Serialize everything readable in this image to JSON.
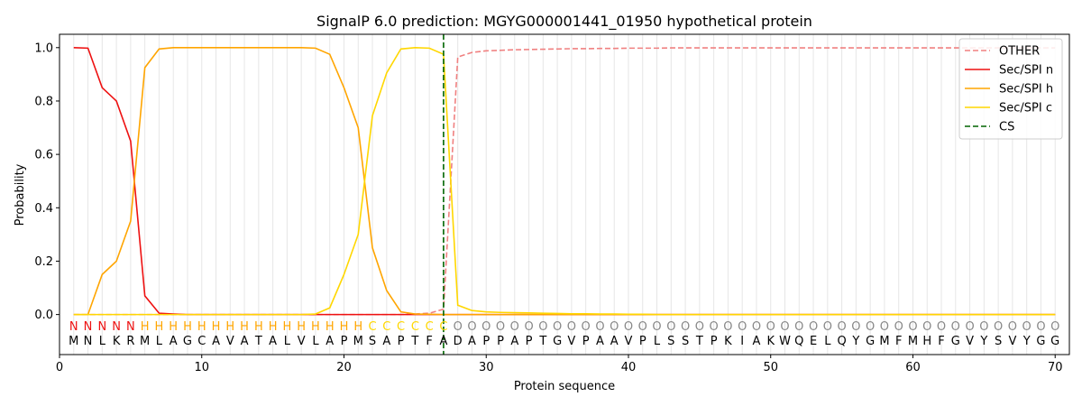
{
  "chart_data": {
    "type": "line",
    "title": "SignalP 6.0 prediction: MGYG000001441_01950 hypothetical protein",
    "xlabel": "Protein sequence",
    "ylabel": "Probability",
    "xlim": [
      0,
      71
    ],
    "ylim": [
      -0.15,
      1.05
    ],
    "xticks": [
      "0",
      "10",
      "20",
      "30",
      "40",
      "50",
      "60",
      "70"
    ],
    "yticks": [
      "0.0",
      "0.2",
      "0.4",
      "0.6",
      "0.8",
      "1.0"
    ],
    "grid": "vertical lines at each residue",
    "legend_position": "top-right",
    "sequence": [
      "M",
      "N",
      "L",
      "K",
      "R",
      "M",
      "L",
      "A",
      "G",
      "C",
      "A",
      "V",
      "A",
      "T",
      "A",
      "L",
      "V",
      "L",
      "A",
      "P",
      "M",
      "S",
      "A",
      "P",
      "T",
      "F",
      "A",
      "D",
      "A",
      "P",
      "P",
      "A",
      "P",
      "T",
      "G",
      "V",
      "P",
      "A",
      "A",
      "V",
      "P",
      "L",
      "S",
      "S",
      "T",
      "P",
      "K",
      "I",
      "A",
      "K",
      "W",
      "Q",
      "E",
      "L",
      "Q",
      "Y",
      "G",
      "M",
      "F",
      "M",
      "H",
      "F",
      "G",
      "V",
      "Y",
      "S",
      "V",
      "Y",
      "G",
      "G"
    ],
    "labels": [
      "N",
      "N",
      "N",
      "N",
      "N",
      "H",
      "H",
      "H",
      "H",
      "H",
      "H",
      "H",
      "H",
      "H",
      "H",
      "H",
      "H",
      "H",
      "H",
      "H",
      "H",
      "C",
      "C",
      "C",
      "C",
      "C",
      "C",
      "O",
      "O",
      "O",
      "O",
      "O",
      "O",
      "O",
      "O",
      "O",
      "O",
      "O",
      "O",
      "O",
      "O",
      "O",
      "O",
      "O",
      "O",
      "O",
      "O",
      "O",
      "O",
      "O",
      "O",
      "O",
      "O",
      "O",
      "O",
      "O",
      "O",
      "O",
      "O",
      "O",
      "O",
      "O",
      "O",
      "O",
      "O",
      "O",
      "O",
      "O",
      "O",
      "O"
    ],
    "label_colors": {
      "N": "#ee1111",
      "H": "#ffa500",
      "C": "#ffd700",
      "O": "#888888"
    },
    "series": [
      {
        "name": "OTHER",
        "color": "#f08080",
        "dash": "dashed",
        "values": [
          0,
          0,
          0,
          0,
          0,
          0,
          0,
          0,
          0,
          0,
          0,
          0,
          0,
          0,
          0,
          0,
          0,
          0,
          0,
          0,
          0,
          0,
          0,
          0,
          0.002,
          0.005,
          0.02,
          0.965,
          0.982,
          0.988,
          0.99,
          0.992,
          0.993,
          0.994,
          0.995,
          0.996,
          0.996,
          0.997,
          0.997,
          0.998,
          0.998,
          0.998,
          0.999,
          0.999,
          0.999,
          0.999,
          0.999,
          0.999,
          0.999,
          0.999,
          0.999,
          0.999,
          0.999,
          0.999,
          0.999,
          0.999,
          0.999,
          0.999,
          0.999,
          0.999,
          0.999,
          0.999,
          0.999,
          0.999,
          0.999,
          0.999,
          0.999,
          0.999,
          0.999,
          0.999
        ]
      },
      {
        "name": "Sec/SPI n",
        "color": "#ee1111",
        "dash": "solid",
        "values": [
          1.0,
          0.998,
          0.85,
          0.8,
          0.65,
          0.07,
          0.005,
          0.002,
          0,
          0,
          0,
          0,
          0,
          0,
          0,
          0,
          0,
          0,
          0,
          0,
          0,
          0,
          0,
          0,
          0,
          0,
          0,
          0,
          0,
          0,
          0,
          0,
          0,
          0,
          0,
          0,
          0,
          0,
          0,
          0,
          0,
          0,
          0,
          0,
          0,
          0,
          0,
          0,
          0,
          0,
          0,
          0,
          0,
          0,
          0,
          0,
          0,
          0,
          0,
          0,
          0,
          0,
          0,
          0,
          0,
          0,
          0,
          0,
          0,
          0
        ]
      },
      {
        "name": "Sec/SPI h",
        "color": "#ffa500",
        "dash": "solid",
        "values": [
          0,
          0,
          0.15,
          0.2,
          0.35,
          0.925,
          0.995,
          1.0,
          1.0,
          1.0,
          1.0,
          1.0,
          1.0,
          1.0,
          1.0,
          1.0,
          1.0,
          0.998,
          0.975,
          0.85,
          0.7,
          0.25,
          0.09,
          0.01,
          0.002,
          0.001,
          0,
          0,
          0,
          0,
          0,
          0,
          0,
          0,
          0,
          0,
          0,
          0,
          0,
          0,
          0,
          0,
          0,
          0,
          0,
          0,
          0,
          0,
          0,
          0,
          0,
          0,
          0,
          0,
          0,
          0,
          0,
          0,
          0,
          0,
          0,
          0,
          0,
          0,
          0,
          0,
          0,
          0,
          0,
          0
        ]
      },
      {
        "name": "Sec/SPI c",
        "color": "#ffd700",
        "dash": "solid",
        "values": [
          0,
          0,
          0,
          0,
          0,
          0,
          0,
          0,
          0,
          0,
          0,
          0,
          0,
          0,
          0,
          0,
          0,
          0.002,
          0.025,
          0.15,
          0.3,
          0.745,
          0.905,
          0.995,
          1.0,
          0.998,
          0.975,
          0.035,
          0.015,
          0.01,
          0.008,
          0.007,
          0.006,
          0.005,
          0.004,
          0.003,
          0.003,
          0.002,
          0.002,
          0.001,
          0.001,
          0,
          0,
          0,
          0,
          0,
          0,
          0,
          0,
          0,
          0,
          0,
          0,
          0,
          0,
          0,
          0,
          0,
          0,
          0,
          0,
          0,
          0,
          0,
          0,
          0,
          0,
          0,
          0,
          0
        ]
      },
      {
        "name": "CS",
        "color": "#006400",
        "dash": "dashed",
        "position": 27
      }
    ]
  }
}
